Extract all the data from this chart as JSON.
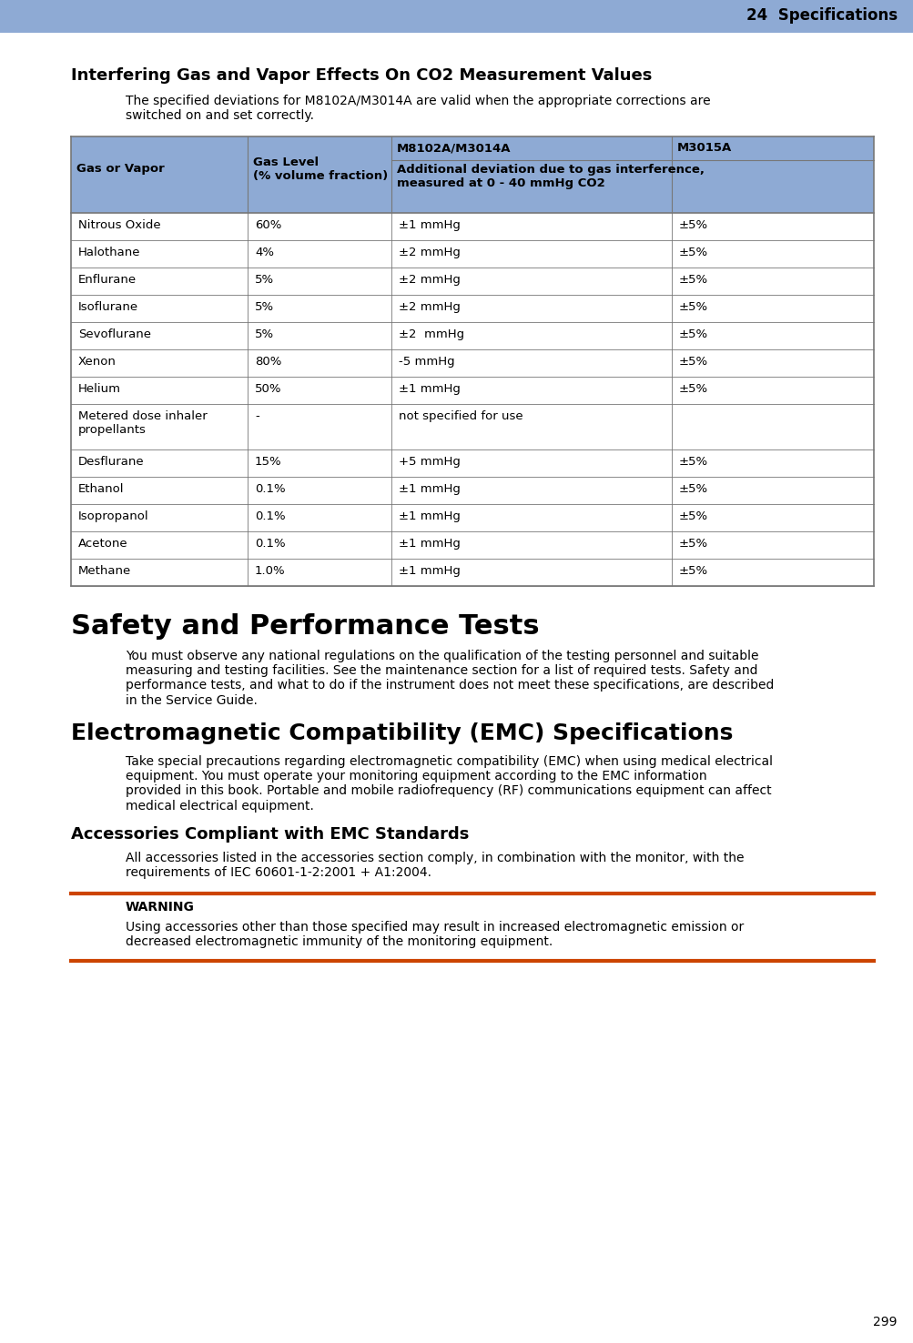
{
  "page_header_text": "24  Specifications",
  "page_number": "299",
  "header_bg_color": "#8eaad4",
  "page_bg_color": "#ffffff",
  "section1_title": "Interfering Gas and Vapor Effects On CO2 Measurement Values",
  "section1_body": "The specified deviations for M8102A/M3014A are valid when the appropriate corrections are\nswitched on and set correctly.",
  "table_header_bg": "#8eaad4",
  "table_subheader": "Additional deviation due to gas interference,\nmeasured at 0 - 40 mmHg CO2",
  "table_rows": [
    [
      "Nitrous Oxide",
      "60%",
      "±1 mmHg",
      "±5%"
    ],
    [
      "Halothane",
      "4%",
      "±2 mmHg",
      "±5%"
    ],
    [
      "Enflurane",
      "5%",
      "±2 mmHg",
      "±5%"
    ],
    [
      "Isoflurane",
      "5%",
      "±2 mmHg",
      "±5%"
    ],
    [
      "Sevoflurane",
      "5%",
      "±2  mmHg",
      "±5%"
    ],
    [
      "Xenon",
      "80%",
      "-5 mmHg",
      "±5%"
    ],
    [
      "Helium",
      "50%",
      "±1 mmHg",
      "±5%"
    ],
    [
      "Metered dose inhaler\npropellants",
      "-",
      "not specified for use",
      ""
    ],
    [
      "Desflurane",
      "15%",
      "+5 mmHg",
      "±5%"
    ],
    [
      "Ethanol",
      "0.1%",
      "±1 mmHg",
      "±5%"
    ],
    [
      "Isopropanol",
      "0.1%",
      "±1 mmHg",
      "±5%"
    ],
    [
      "Acetone",
      "0.1%",
      "±1 mmHg",
      "±5%"
    ],
    [
      "Methane",
      "1.0%",
      "±1 mmHg",
      "±5%"
    ]
  ],
  "table_border_color": "#777777",
  "section2_title": "Safety and Performance Tests",
  "section2_body": "You must observe any national regulations on the qualification of the testing personnel and suitable\nmeasuring and testing facilities. See the maintenance section for a list of required tests. Safety and\nperformance tests, and what to do if the instrument does not meet these specifications, are described\nin the Service Guide.",
  "section3_title": "Electromagnetic Compatibility (EMC) Specifications",
  "section3_body": "Take special precautions regarding electromagnetic compatibility (EMC) when using medical electrical\nequipment. You must operate your monitoring equipment according to the EMC information\nprovided in this book. Portable and mobile radiofrequency (RF) communications equipment can affect\nmedical electrical equipment.",
  "section4_title": "Accessories Compliant with EMC Standards",
  "section4_body": "All accessories listed in the accessories section comply, in combination with the monitor, with the\nrequirements of IEC 60601-1-2:2001 + A1:2004.",
  "warning_label": "WARNING",
  "warning_body": "Using accessories other than those specified may result in increased electromagnetic emission or\ndecreased electromagnetic immunity of the monitoring equipment.",
  "warning_line_color": "#cc4400"
}
